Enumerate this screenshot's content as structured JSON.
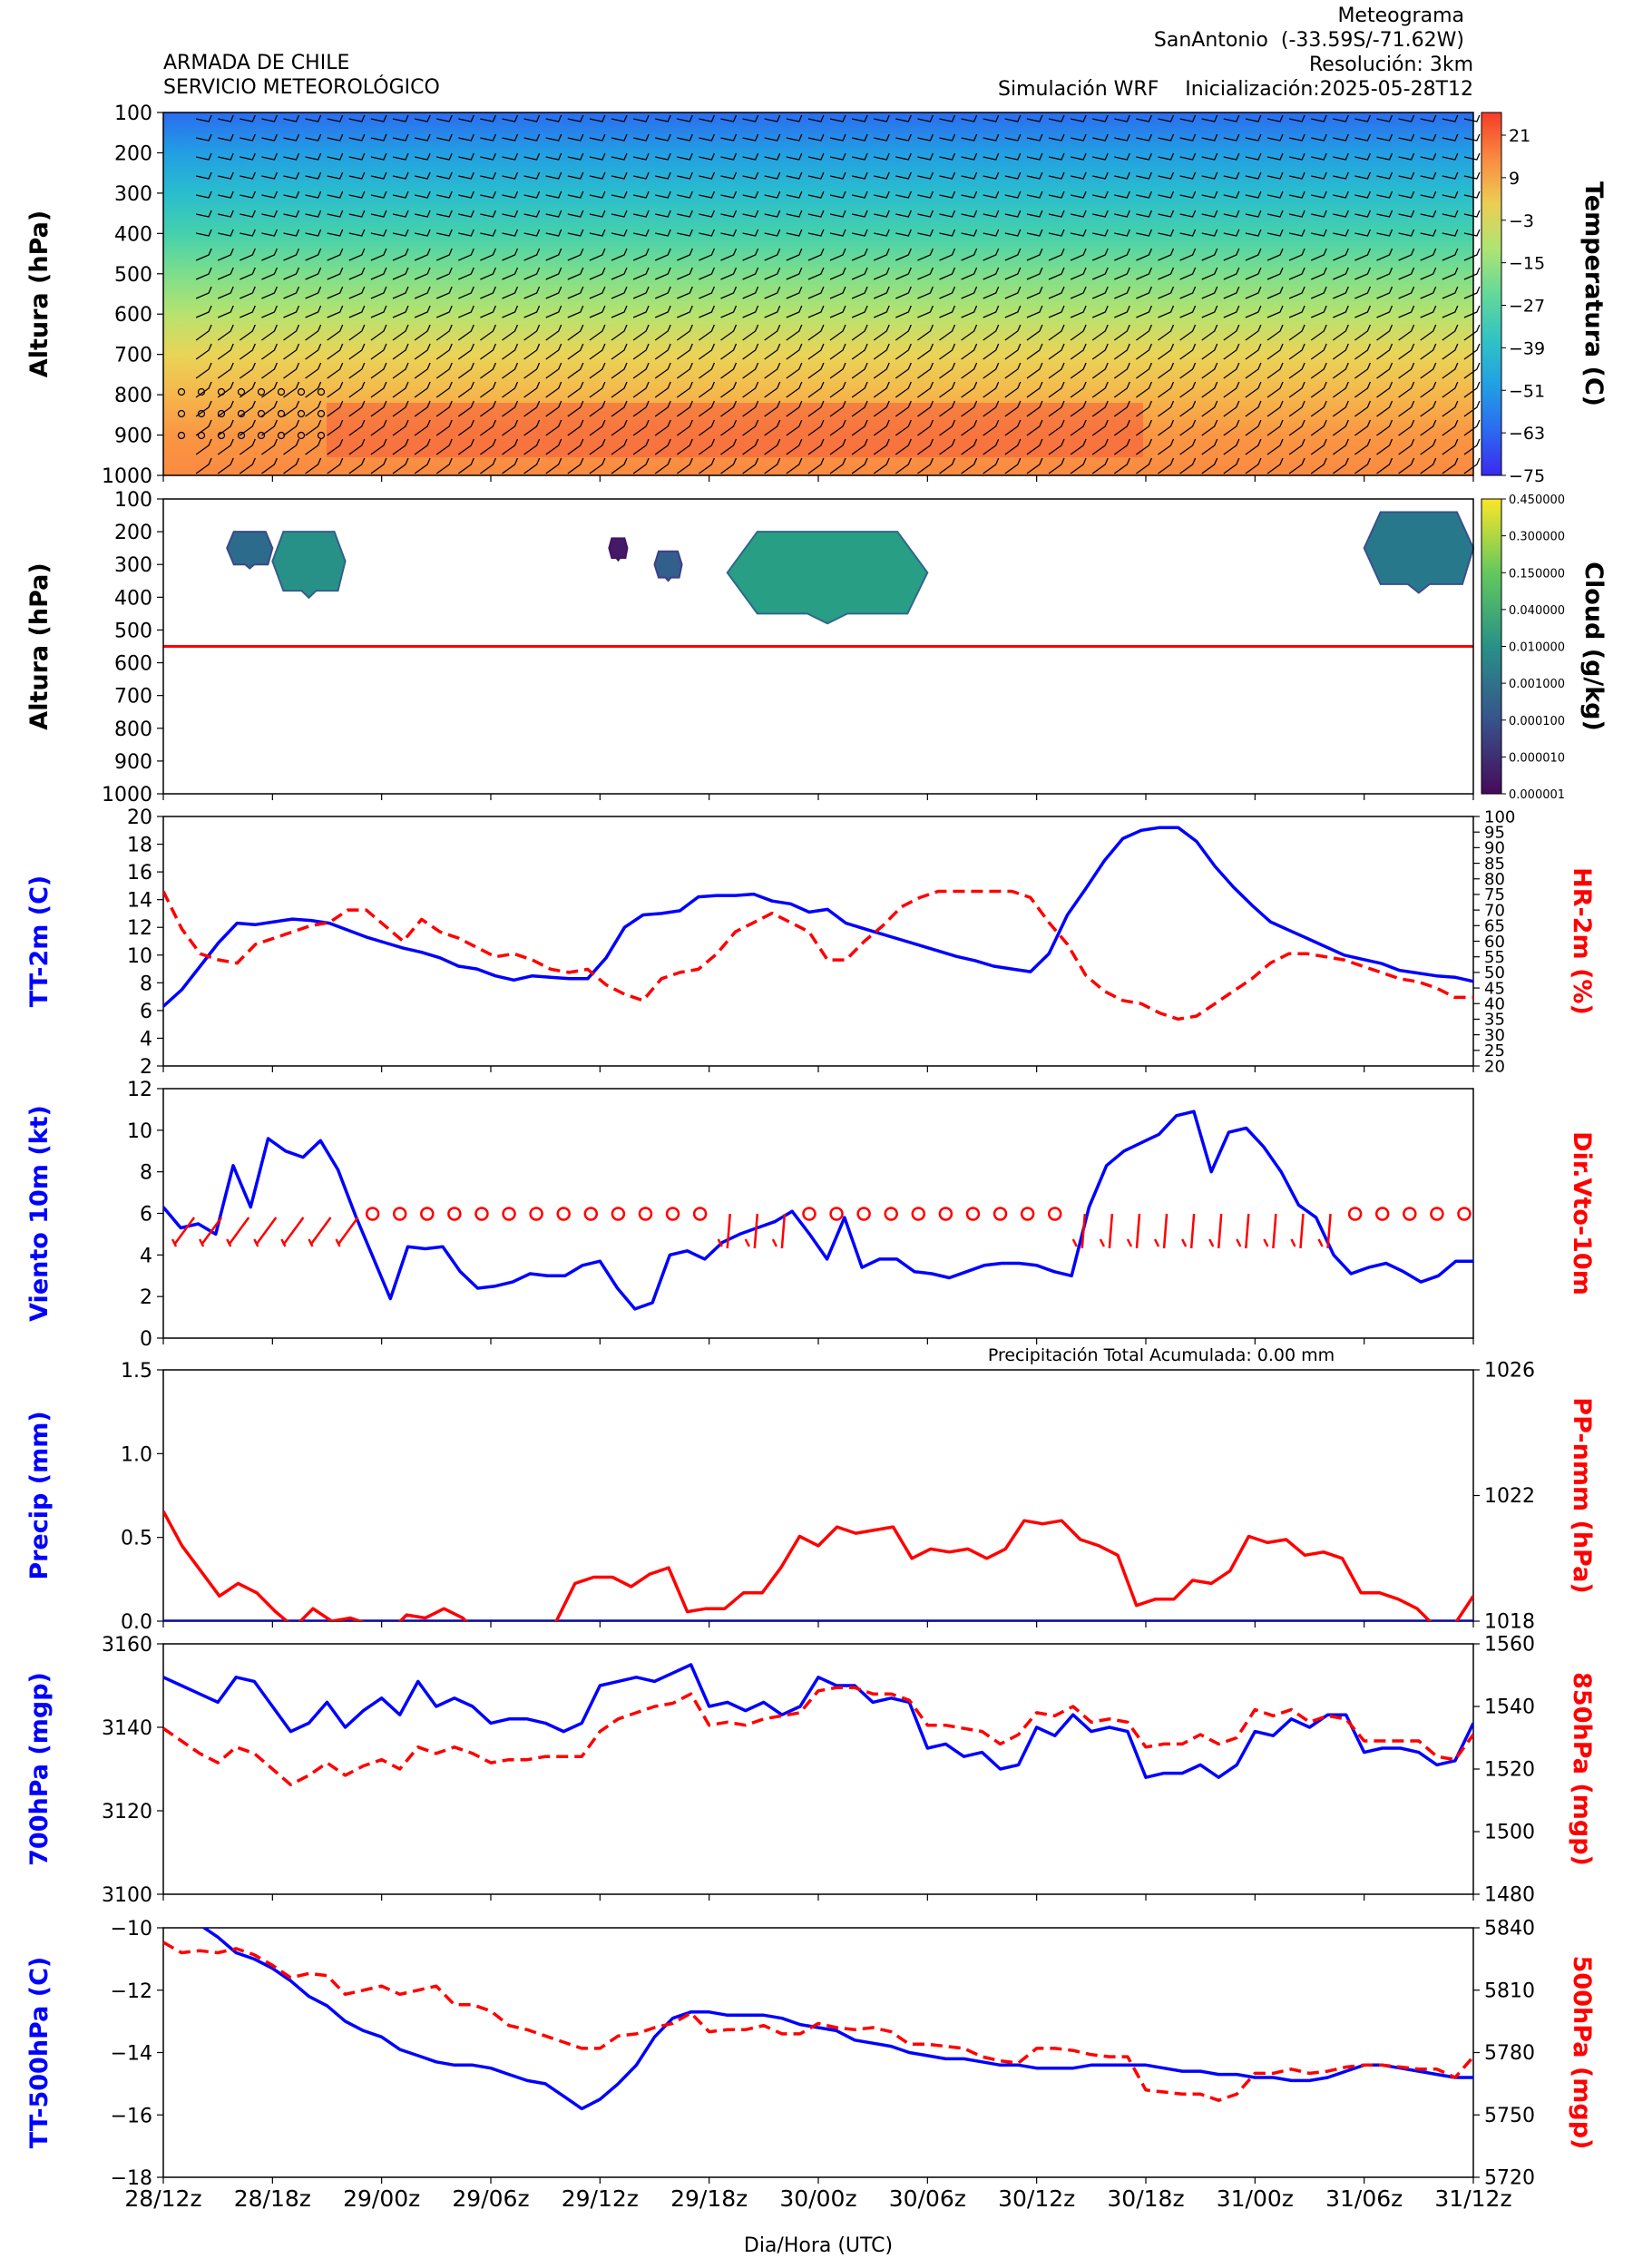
{
  "header": {
    "org_line1": "ARMADA DE CHILE",
    "org_line2": "SERVICIO METEOROLÓGICO",
    "title": "Meteograma",
    "station": "SanAntonio  (-33.59S/-71.62W)",
    "resolution": "Resolución: 3km",
    "simulation": "Simulación WRF",
    "init": "Inicialización:2025-05-28T12"
  },
  "x_axis": {
    "label": "Dia/Hora (UTC)",
    "tick_labels": [
      "28/12z",
      "28/18z",
      "29/00z",
      "29/06z",
      "29/12z",
      "29/18z",
      "30/00z",
      "30/06z",
      "30/12z",
      "30/18z",
      "31/00z",
      "31/06z",
      "31/12z"
    ]
  },
  "annotations": {
    "precip_total": "Precipitación Total Acumulada: 0.00 mm"
  },
  "chart_data": [
    {
      "type": "heatmap",
      "panel": "temperature-profile",
      "ylabel": "Altura (hPa)",
      "colorbar_label": "Temperatura (C)",
      "y_ticks": [
        "100",
        "200",
        "300",
        "400",
        "500",
        "600",
        "700",
        "800",
        "900",
        "1000"
      ],
      "colorbar_ticks": [
        "21",
        "9",
        "−3",
        "−15",
        "−27",
        "−39",
        "−51",
        "−63",
        "−75"
      ],
      "ylim": [
        1000,
        100
      ],
      "vlim": [
        -75,
        27
      ],
      "temperature_by_level": [
        {
          "p": 100,
          "t": -62
        },
        {
          "p": 200,
          "t": -50
        },
        {
          "p": 300,
          "t": -40
        },
        {
          "p": 400,
          "t": -30
        },
        {
          "p": 500,
          "t": -20
        },
        {
          "p": 600,
          "t": -10
        },
        {
          "p": 700,
          "t": 0
        },
        {
          "p": 800,
          "t": 6
        },
        {
          "p": 900,
          "t": 12
        },
        {
          "p": 1000,
          "t": 14
        }
      ],
      "wind_barbs": true
    },
    {
      "type": "heatmap",
      "panel": "cloud",
      "ylabel": "Altura (hPa)",
      "colorbar_label": "Cloud (g/kg)",
      "y_ticks": [
        "100",
        "200",
        "300",
        "400",
        "500",
        "600",
        "700",
        "800",
        "900",
        "1000"
      ],
      "colorbar_ticks": [
        "0.450000",
        "0.300000",
        "0.150000",
        "0.040000",
        "0.010000",
        "0.001000",
        "0.000100",
        "0.000010",
        "0.000001"
      ],
      "ylim": [
        1000,
        100
      ],
      "freezing_level_hpa": 550,
      "cloud_regions": [
        {
          "x": [
            3.5,
            6.0
          ],
          "p": [
            200,
            300
          ],
          "level": 0.35
        },
        {
          "x": [
            6.0,
            10.0
          ],
          "p": [
            200,
            380
          ],
          "level": 0.5
        },
        {
          "x": [
            24.5,
            25.5
          ],
          "p": [
            220,
            280
          ],
          "level": 0.05
        },
        {
          "x": [
            27.0,
            28.5
          ],
          "p": [
            260,
            340
          ],
          "level": 0.3
        },
        {
          "x": [
            31.0,
            42.0
          ],
          "p": [
            200,
            450
          ],
          "level": 0.55
        },
        {
          "x": [
            66.0,
            72.0
          ],
          "p": [
            140,
            360
          ],
          "level": 0.4
        }
      ]
    },
    {
      "type": "line",
      "panel": "tt2m-hr2m",
      "ylabel": "TT-2m (C)",
      "ylabel_right": "HR-2m (%)",
      "y_ticks": [
        "2",
        "4",
        "6",
        "8",
        "10",
        "12",
        "14",
        "16",
        "18",
        "20"
      ],
      "y2_ticks": [
        "20",
        "25",
        "30",
        "35",
        "40",
        "45",
        "50",
        "55",
        "60",
        "65",
        "70",
        "75",
        "80",
        "85",
        "90",
        "95",
        "100"
      ],
      "ylim": [
        2,
        20
      ],
      "y2lim": [
        20,
        100
      ],
      "series": [
        {
          "color": "#0000ff",
          "dash": false,
          "axis": "left",
          "values": [
            6.3,
            7.5,
            9.2,
            10.9,
            12.3,
            12.2,
            12.4,
            12.6,
            12.5,
            12.3,
            11.8,
            11.3,
            10.9,
            10.5,
            10.2,
            9.8,
            9.2,
            9.0,
            8.5,
            8.2,
            8.5,
            8.4,
            8.3,
            8.3,
            9.8,
            12.0,
            12.9,
            13.0,
            13.2,
            14.2,
            14.3,
            14.3,
            14.4,
            13.9,
            13.7,
            13.1,
            13.3,
            12.3,
            11.9,
            11.5,
            11.1,
            10.7,
            10.3,
            9.9,
            9.6,
            9.2,
            9.0,
            8.8,
            10.1,
            12.9,
            14.8,
            16.8,
            18.4,
            19.0,
            19.2,
            19.2,
            18.2,
            16.4,
            14.9,
            13.6,
            12.4,
            11.8,
            11.2,
            10.6,
            10.0,
            9.7,
            9.4,
            8.9,
            8.7,
            8.5,
            8.4,
            8.1
          ]
        },
        {
          "color": "#ff0000",
          "dash": true,
          "axis": "right",
          "values": [
            76,
            64,
            56,
            54,
            53,
            59,
            61,
            63,
            65,
            66,
            70,
            70,
            65,
            60,
            67,
            63,
            61,
            58,
            55,
            56,
            54,
            51,
            50,
            51,
            46,
            43,
            41,
            48,
            50,
            51,
            56,
            63,
            66,
            69,
            66,
            63,
            54,
            54,
            60,
            65,
            71,
            74,
            76,
            76,
            76,
            76,
            76,
            74,
            66,
            59,
            49,
            44,
            41,
            40,
            37,
            35,
            36,
            40,
            44,
            48,
            53,
            56,
            56,
            55,
            54,
            52,
            50,
            48,
            47,
            45,
            42,
            42
          ]
        }
      ]
    },
    {
      "type": "line",
      "panel": "wind10m",
      "ylabel": "Viento 10m (kt)",
      "ylabel_right": "Dir.Vto-10m",
      "y_ticks": [
        "0",
        "2",
        "4",
        "6",
        "8",
        "10",
        "12"
      ],
      "ylim": [
        0,
        12
      ],
      "series": [
        {
          "color": "#0000ff",
          "dash": false,
          "values": [
            6.3,
            5.3,
            5.5,
            5.0,
            8.3,
            6.3,
            9.6,
            9.0,
            8.7,
            9.5,
            8.1,
            5.9,
            3.9,
            1.9,
            4.4,
            4.3,
            4.4,
            3.2,
            2.4,
            2.5,
            2.7,
            3.1,
            3.0,
            3.0,
            3.5,
            3.7,
            2.4,
            1.4,
            1.7,
            4.0,
            4.2,
            3.8,
            4.6,
            5.0,
            5.3,
            5.6,
            6.1,
            5.0,
            3.8,
            5.8,
            3.4,
            3.8,
            3.8,
            3.2,
            3.1,
            2.9,
            3.2,
            3.5,
            3.6,
            3.6,
            3.5,
            3.2,
            3.0,
            6.3,
            8.3,
            9.0,
            9.4,
            9.8,
            10.7,
            10.9,
            8.0,
            9.9,
            10.1,
            9.2,
            8.0,
            6.4,
            5.8,
            4.0,
            3.1,
            3.4,
            3.6,
            3.2,
            2.7,
            3.0,
            3.7,
            3.7
          ]
        }
      ],
      "direction_markers": "barbs_and_calm_circles"
    },
    {
      "type": "line",
      "panel": "precip-pressure",
      "ylabel": "Precip (mm)",
      "ylabel_right": "PP-nmm (hPa)",
      "y_ticks": [
        "0.0",
        "0.5",
        "1.0",
        "1.5"
      ],
      "y2_ticks": [
        "1018",
        "1022",
        "1026"
      ],
      "ylim": [
        0,
        1.5
      ],
      "y2lim": [
        1018,
        1026
      ],
      "series": [
        {
          "color": "#0000ff",
          "dash": false,
          "axis": "left",
          "values": [
            0,
            0,
            0,
            0,
            0,
            0,
            0,
            0,
            0,
            0,
            0,
            0,
            0,
            0,
            0,
            0,
            0,
            0,
            0,
            0,
            0,
            0,
            0,
            0,
            0,
            0,
            0,
            0,
            0,
            0,
            0,
            0,
            0,
            0,
            0,
            0,
            0,
            0,
            0,
            0,
            0,
            0,
            0,
            0,
            0,
            0,
            0,
            0,
            0,
            0,
            0,
            0,
            0,
            0,
            0,
            0,
            0,
            0,
            0,
            0,
            0,
            0,
            0,
            0,
            0,
            0,
            0,
            0,
            0,
            0,
            0,
            0,
            0
          ]
        },
        {
          "color": "#ff0000",
          "dash": false,
          "axis": "right",
          "values": [
            1021.5,
            1020.4,
            1019.6,
            1018.8,
            1019.2,
            1018.9,
            1018.3,
            1017.8,
            1018.4,
            1018.0,
            1018.1,
            1017.9,
            1017.6,
            1018.2,
            1018.1,
            1018.4,
            1018.1,
            1017.5,
            1017.3,
            1017.3,
            1017.3,
            1018.0,
            1019.2,
            1019.4,
            1019.4,
            1019.1,
            1019.5,
            1019.7,
            1018.3,
            1018.4,
            1018.4,
            1018.9,
            1018.9,
            1019.7,
            1020.7,
            1020.4,
            1021.0,
            1020.8,
            1020.9,
            1021.0,
            1020.0,
            1020.3,
            1020.2,
            1020.3,
            1020.0,
            1020.3,
            1021.2,
            1021.1,
            1021.2,
            1020.6,
            1020.4,
            1020.1,
            1018.5,
            1018.7,
            1018.7,
            1019.3,
            1019.2,
            1019.6,
            1020.7,
            1020.5,
            1020.6,
            1020.1,
            1020.2,
            1020.0,
            1018.9,
            1018.9,
            1018.7,
            1018.4,
            1017.8,
            1017.9,
            1018.8
          ]
        }
      ]
    },
    {
      "type": "line",
      "panel": "geopotential-700-850",
      "ylabel": "700hPa (mgp)",
      "ylabel_right": "850hPa (mgp)",
      "y_ticks": [
        "3100",
        "3120",
        "3140",
        "3160"
      ],
      "y2_ticks": [
        "1480",
        "1500",
        "1520",
        "1540",
        "1560"
      ],
      "ylim": [
        3100,
        3160
      ],
      "y2lim": [
        1480,
        1560
      ],
      "series": [
        {
          "color": "#0000ff",
          "dash": false,
          "axis": "left",
          "values": [
            3152,
            3150,
            3148,
            3146,
            3152,
            3151,
            3145,
            3139,
            3141,
            3146,
            3140,
            3144,
            3147,
            3143,
            3151,
            3145,
            3147,
            3145,
            3141,
            3142,
            3142,
            3141,
            3139,
            3141,
            3150,
            3151,
            3152,
            3151,
            3153,
            3155,
            3145,
            3146,
            3144,
            3146,
            3143,
            3145,
            3152,
            3150,
            3150,
            3146,
            3147,
            3146,
            3135,
            3136,
            3133,
            3134,
            3130,
            3131,
            3140,
            3138,
            3143,
            3139,
            3140,
            3139,
            3128,
            3129,
            3129,
            3131,
            3128,
            3131,
            3139,
            3138,
            3142,
            3140,
            3143,
            3143,
            3134,
            3135,
            3135,
            3134,
            3131,
            3132,
            3141
          ]
        },
        {
          "color": "#ff0000",
          "dash": true,
          "axis": "right",
          "values": [
            1533,
            1529,
            1525,
            1522,
            1527,
            1525,
            1520,
            1515,
            1518,
            1522,
            1518,
            1521,
            1523,
            1520,
            1527,
            1525,
            1527,
            1525,
            1522,
            1523,
            1523,
            1524,
            1524,
            1524,
            1532,
            1536,
            1538,
            1540,
            1541,
            1544,
            1534,
            1535,
            1534,
            1536,
            1537,
            1538,
            1545,
            1546,
            1546,
            1544,
            1544,
            1542,
            1534,
            1534,
            1533,
            1532,
            1528,
            1531,
            1538,
            1537,
            1540,
            1535,
            1536,
            1535,
            1527,
            1528,
            1528,
            1531,
            1528,
            1530,
            1539,
            1537,
            1539,
            1535,
            1537,
            1536,
            1529,
            1529,
            1529,
            1529,
            1524,
            1523,
            1531
          ]
        }
      ]
    },
    {
      "type": "line",
      "panel": "tt500-z500",
      "ylabel": "TT-500hPa (C)",
      "ylabel_right": "500hPa (mgp)",
      "y_ticks": [
        "−18",
        "−16",
        "−14",
        "−12",
        "−10"
      ],
      "y2_ticks": [
        "5720",
        "5750",
        "5780",
        "5810",
        "5840"
      ],
      "ylim": [
        -18,
        -10
      ],
      "y2lim": [
        5720,
        5840
      ],
      "series": [
        {
          "color": "#0000ff",
          "dash": false,
          "axis": "left",
          "values": [
            -9.8,
            -9.9,
            -9.9,
            -10.3,
            -10.8,
            -11.0,
            -11.3,
            -11.7,
            -12.2,
            -12.5,
            -13.0,
            -13.3,
            -13.5,
            -13.9,
            -14.1,
            -14.3,
            -14.4,
            -14.4,
            -14.5,
            -14.7,
            -14.9,
            -15.0,
            -15.4,
            -15.8,
            -15.5,
            -15.0,
            -14.4,
            -13.5,
            -12.9,
            -12.7,
            -12.7,
            -12.8,
            -12.8,
            -12.8,
            -12.9,
            -13.1,
            -13.2,
            -13.3,
            -13.6,
            -13.7,
            -13.8,
            -14.0,
            -14.1,
            -14.2,
            -14.2,
            -14.3,
            -14.4,
            -14.4,
            -14.5,
            -14.5,
            -14.5,
            -14.4,
            -14.4,
            -14.4,
            -14.4,
            -14.5,
            -14.6,
            -14.6,
            -14.7,
            -14.7,
            -14.8,
            -14.8,
            -14.9,
            -14.9,
            -14.8,
            -14.6,
            -14.4,
            -14.4,
            -14.5,
            -14.6,
            -14.7,
            -14.8,
            -14.8
          ]
        },
        {
          "color": "#ff0000",
          "dash": true,
          "axis": "right",
          "values": [
            5833,
            5828,
            5829,
            5828,
            5830,
            5827,
            5822,
            5816,
            5818,
            5817,
            5808,
            5810,
            5812,
            5808,
            5810,
            5812,
            5803,
            5803,
            5800,
            5793,
            5791,
            5788,
            5785,
            5782,
            5782,
            5788,
            5789,
            5792,
            5794,
            5799,
            5790,
            5791,
            5791,
            5793,
            5789,
            5789,
            5794,
            5792,
            5791,
            5792,
            5790,
            5784,
            5784,
            5783,
            5782,
            5778,
            5776,
            5775,
            5782,
            5782,
            5781,
            5779,
            5778,
            5778,
            5762,
            5761,
            5760,
            5760,
            5757,
            5760,
            5770,
            5770,
            5772,
            5770,
            5771,
            5773,
            5774,
            5774,
            5773,
            5772,
            5772,
            5768,
            5778
          ]
        }
      ]
    }
  ]
}
